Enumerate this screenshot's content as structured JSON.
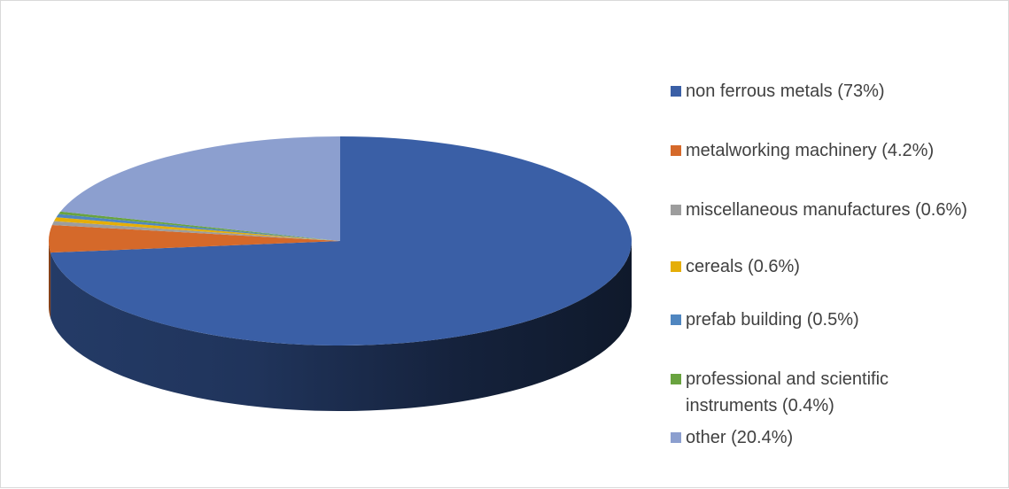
{
  "chart_data": {
    "type": "pie",
    "style": "3d",
    "legend_position": "right",
    "slices": [
      {
        "label": "non ferrous metals (73%)",
        "value": 73.0,
        "color": "#3a5fa6"
      },
      {
        "label": "metalworking machinery (4.2%)",
        "value": 4.2,
        "color": "#d5692a"
      },
      {
        "label": "miscellaneous manufactures (0.6%)",
        "value": 0.6,
        "color": "#9d9d9d"
      },
      {
        "label": "cereals (0.6%)",
        "value": 0.6,
        "color": "#e5ae07"
      },
      {
        "label": "prefab building (0.5%)",
        "value": 0.5,
        "color": "#4f86c0"
      },
      {
        "label": "professional and scientific instruments (0.4%)",
        "value": 0.4,
        "color": "#69a33f"
      },
      {
        "label": "other (20.4%)",
        "value": 20.4,
        "color": "#8c9fcf"
      }
    ]
  }
}
